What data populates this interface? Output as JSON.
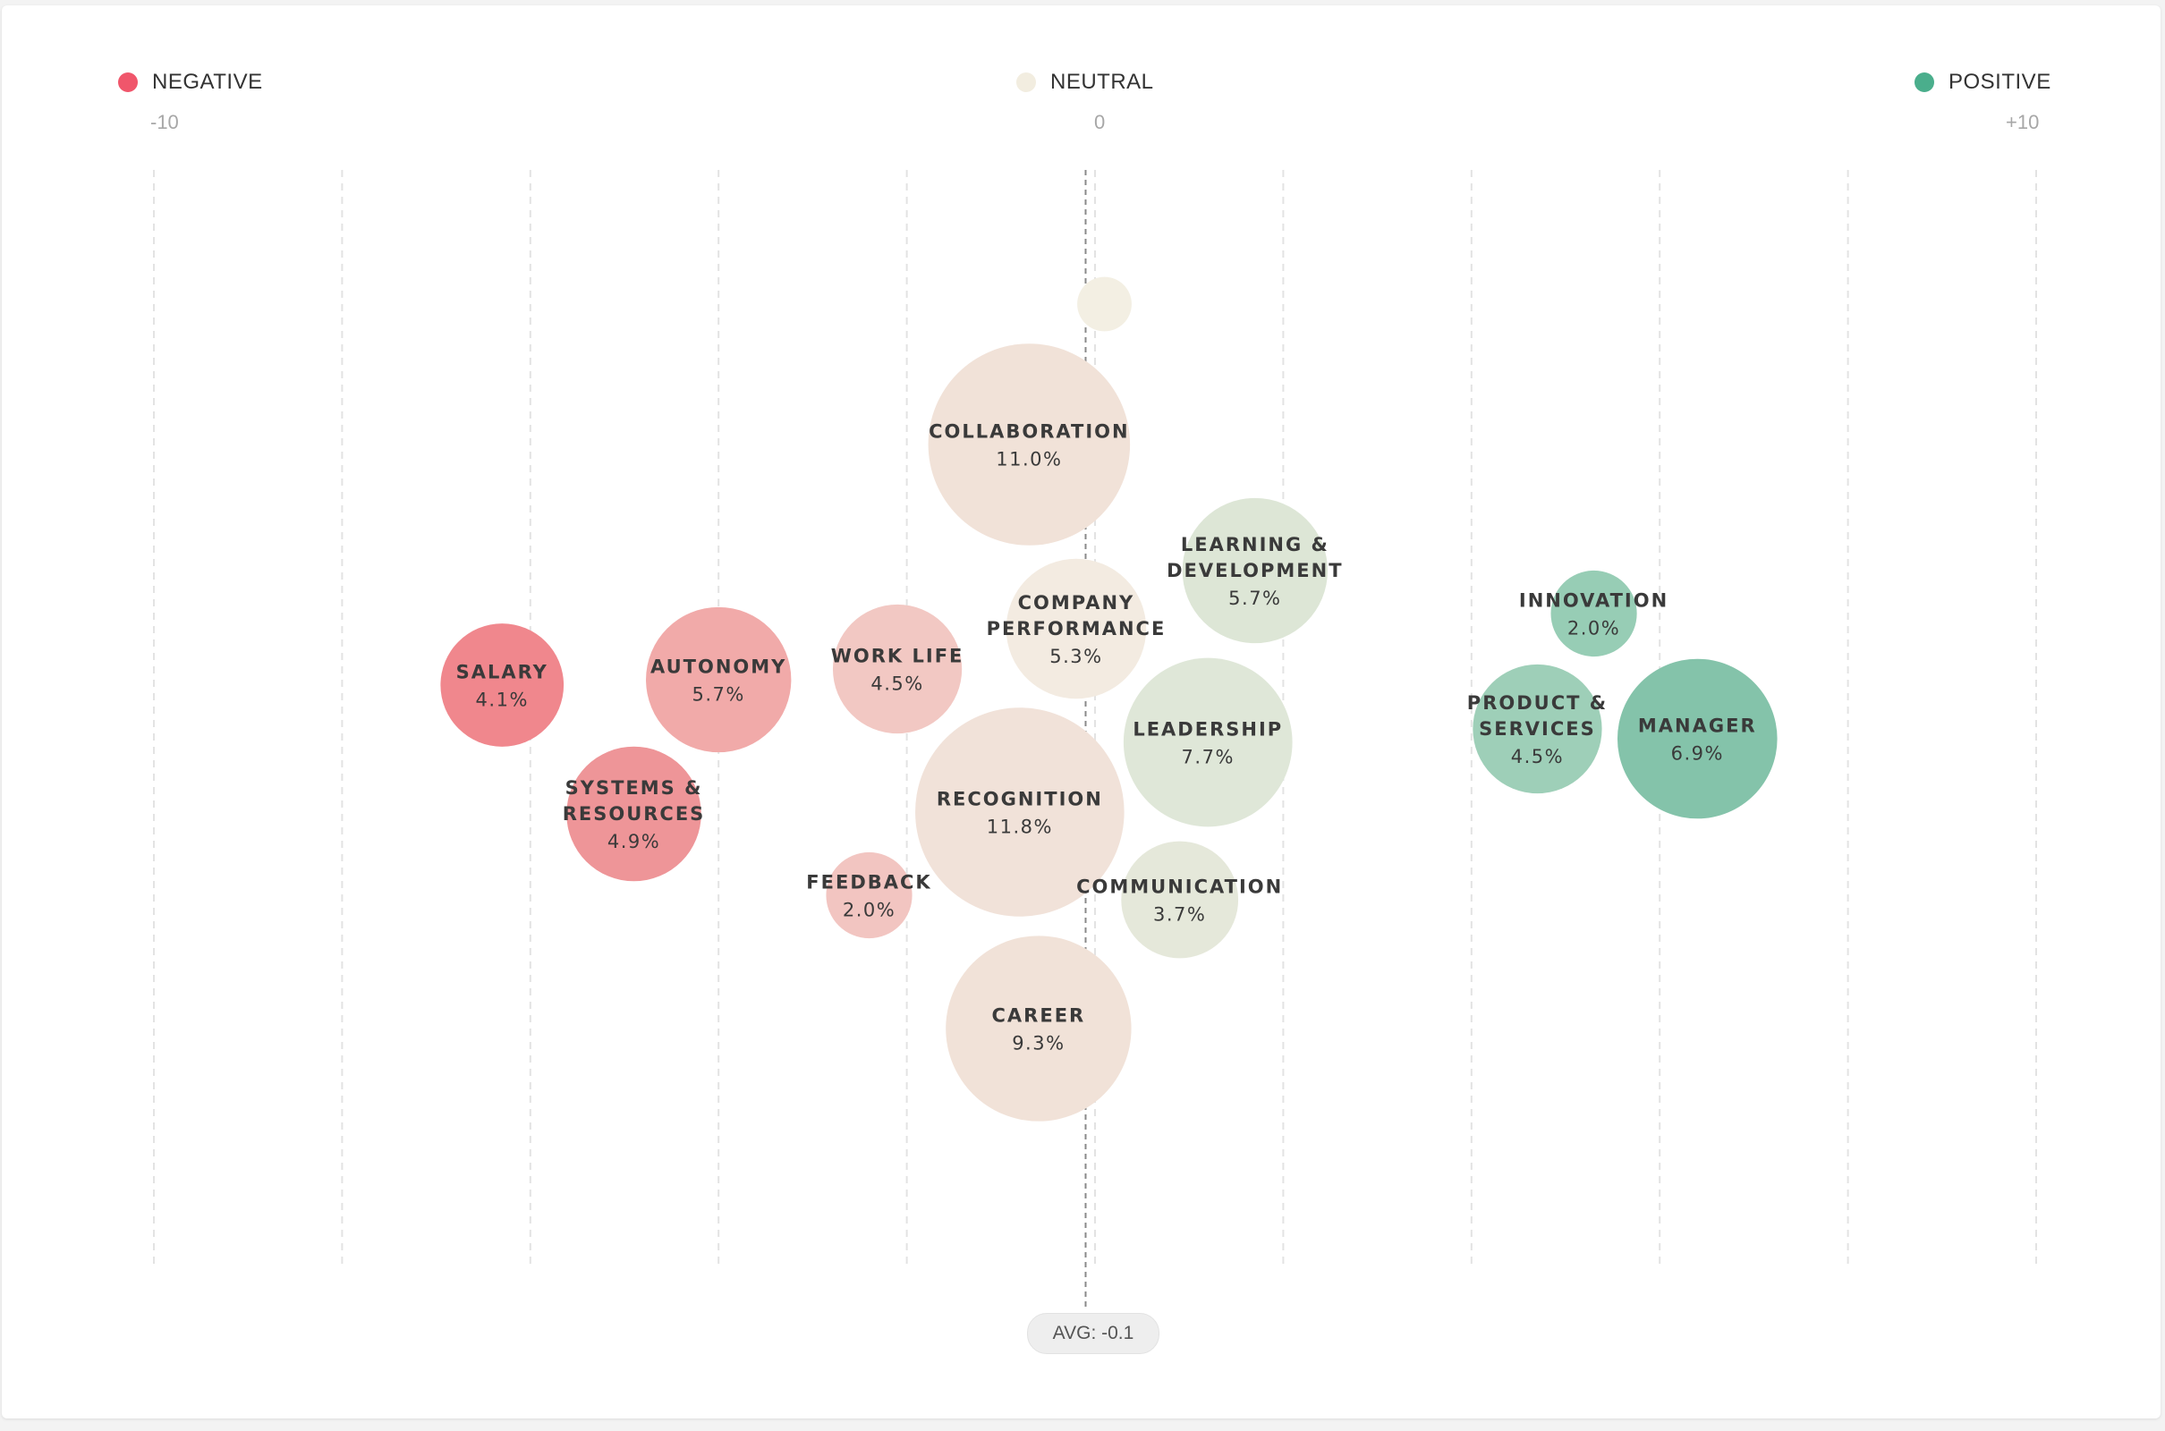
{
  "legend": {
    "negative": {
      "label": "NEGATIVE",
      "color": "#f0566b"
    },
    "neutral": {
      "label": "NEUTRAL",
      "color": "#f2ede0"
    },
    "positive": {
      "label": "POSITIVE",
      "color": "#4aae8c"
    }
  },
  "scale": {
    "min_label": "-10",
    "mid_label": "0",
    "max_label": "+10"
  },
  "avg": {
    "label": "AVG: -0.1",
    "value": -0.1
  },
  "chart_data": {
    "type": "scatter",
    "xlim": [
      -10,
      10
    ],
    "grid": true,
    "points": [
      {
        "label": "",
        "value": "",
        "x": 0.1,
        "share": 0.8,
        "color": "#f3efe3"
      },
      {
        "label": "COLLABORATION",
        "value": "11.0%",
        "x": -0.7,
        "share": 11.0,
        "color": "#f1e2d8"
      },
      {
        "label": "LEARNING & DEVELOPMENT",
        "value": "5.7%",
        "x": 1.7,
        "share": 5.7,
        "color": "#dde6d6"
      },
      {
        "label": "COMPANY PERFORMANCE",
        "value": "5.3%",
        "x": -0.2,
        "share": 5.3,
        "color": "#f3ebe1"
      },
      {
        "label": "INNOVATION",
        "value": "2.0%",
        "x": 5.3,
        "share": 2.0,
        "color": "#97cdb5"
      },
      {
        "label": "SALARY",
        "value": "4.1%",
        "x": -6.3,
        "share": 4.1,
        "color": "#f0878d"
      },
      {
        "label": "AUTONOMY",
        "value": "5.7%",
        "x": -4.0,
        "share": 5.7,
        "color": "#f1aaa9"
      },
      {
        "label": "WORK LIFE",
        "value": "4.5%",
        "x": -2.1,
        "share": 4.5,
        "color": "#f2c8c3"
      },
      {
        "label": "LEADERSHIP",
        "value": "7.7%",
        "x": 1.2,
        "share": 7.7,
        "color": "#dfe7d8"
      },
      {
        "label": "PRODUCT & SERVICES",
        "value": "4.5%",
        "x": 4.7,
        "share": 4.5,
        "color": "#9ecfb8"
      },
      {
        "label": "MANAGER",
        "value": "6.9%",
        "x": 6.4,
        "share": 6.9,
        "color": "#84c3aa"
      },
      {
        "label": "SYSTEMS & RESOURCES",
        "value": "4.9%",
        "x": -4.9,
        "share": 4.9,
        "color": "#ee9598"
      },
      {
        "label": "RECOGNITION",
        "value": "11.8%",
        "x": -0.8,
        "share": 11.8,
        "color": "#f1e2d9"
      },
      {
        "label": "FEEDBACK",
        "value": "2.0%",
        "x": -2.4,
        "share": 2.0,
        "color": "#f2c5c1"
      },
      {
        "label": "COMMUNICATION",
        "value": "3.7%",
        "x": 0.9,
        "share": 3.7,
        "color": "#e5e8da"
      },
      {
        "label": "CAREER",
        "value": "9.3%",
        "x": -0.6,
        "share": 9.3,
        "color": "#f1e2d8"
      }
    ]
  }
}
